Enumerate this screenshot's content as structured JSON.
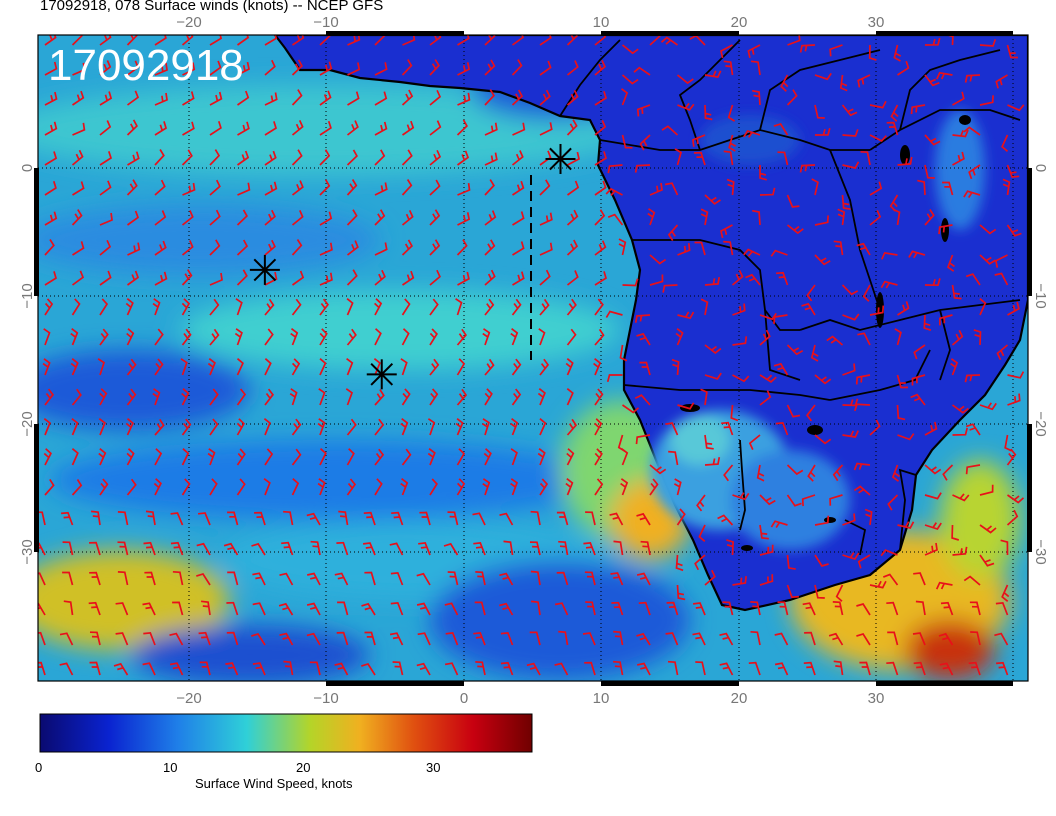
{
  "header": {
    "title": "17092918, 078 Surface winds (knots) -- NCEP GFS",
    "stamp": "17092918"
  },
  "axes": {
    "lon_ticks": [
      "−20",
      "−10",
      "0",
      "10",
      "20",
      "30"
    ],
    "lat_ticks": [
      "0",
      "−10",
      "−20",
      "−30"
    ]
  },
  "colorbar": {
    "label": "Surface Wind Speed, knots",
    "ticks": [
      "0",
      "10",
      "20",
      "30"
    ],
    "range": [
      0,
      37
    ],
    "colors": [
      "#0a0a70",
      "#0a23d0",
      "#1f7fe8",
      "#2fd0d8",
      "#b5d428",
      "#f0b020",
      "#e05010",
      "#c80010",
      "#700000"
    ]
  },
  "map": {
    "projection": "equirectangular",
    "lon_range": [
      -31,
      41
    ],
    "lat_range": [
      -40,
      9.5
    ],
    "markers": [
      {
        "name": "storm-marker-1",
        "lon": 7,
        "lat": 0
      },
      {
        "name": "storm-marker-2",
        "lon": -14.5,
        "lat": -8.5
      },
      {
        "name": "storm-marker-3",
        "lon": -6,
        "lat": -16.5
      }
    ]
  }
}
